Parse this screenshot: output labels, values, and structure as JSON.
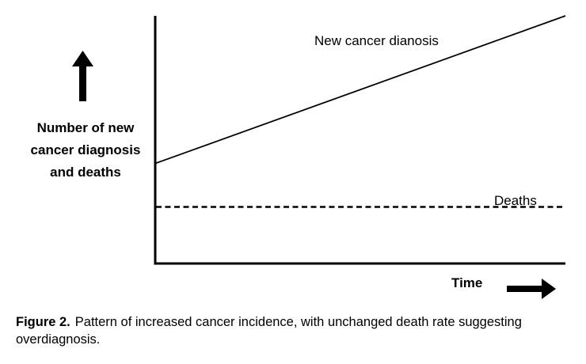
{
  "chart_data": {
    "type": "line",
    "xlabel": "Time",
    "ylabel_lines": [
      "Number of new",
      "cancer diagnosis",
      "and deaths"
    ],
    "x_ticks": [],
    "y_ticks": [],
    "grid": false,
    "legend": "none",
    "series": [
      {
        "name": "New cancer dianosis",
        "style": "solid",
        "color": "#000000",
        "points": [
          {
            "x": 0,
            "y": 0.36
          },
          {
            "x": 1,
            "y": 1.0
          }
        ]
      },
      {
        "name": "Deaths",
        "style": "dashed",
        "color": "#000000",
        "points": [
          {
            "x": 0,
            "y": 0.17
          },
          {
            "x": 1,
            "y": 0.17
          }
        ]
      }
    ],
    "xlim": [
      0,
      1
    ],
    "ylim": [
      0,
      1
    ]
  },
  "caption": {
    "figure_number": "Figure 2.",
    "text": "Pattern of increased cancer incidence, with unchanged death rate suggesting overdiagnosis."
  }
}
